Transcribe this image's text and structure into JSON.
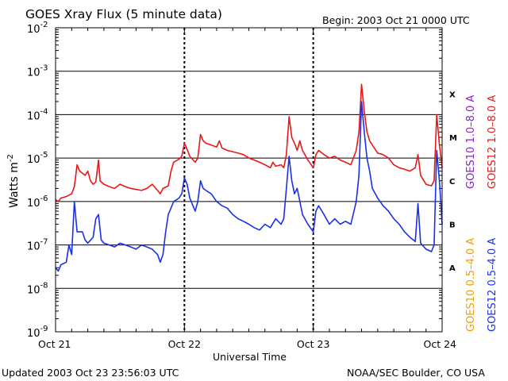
{
  "header": {
    "title": "GOES Xray Flux (5 minute data)",
    "begin": "Begin:  2003 Oct 21 0000 UTC"
  },
  "footer": {
    "updated": "Updated 2003 Oct 23 23:56:03 UTC",
    "credit": "NOAA/SEC Boulder, CO USA"
  },
  "chart_data": {
    "type": "line",
    "title": "GOES Xray Flux (5 minute data)",
    "xlabel": "Universal Time",
    "ylabel": "Watts m",
    "ylabel_superscript": "-2",
    "yscale": "log",
    "ylim": [
      1e-09,
      0.01
    ],
    "xlim": [
      0,
      72
    ],
    "x_unit": "hours since 2003 Oct 21 0000 UTC",
    "y_ticks": [
      {
        "exp": "-9",
        "base": "10"
      },
      {
        "exp": "-8",
        "base": "10"
      },
      {
        "exp": "-7",
        "base": "10"
      },
      {
        "exp": "-6",
        "base": "10"
      },
      {
        "exp": "-5",
        "base": "10"
      },
      {
        "exp": "-4",
        "base": "10"
      },
      {
        "exp": "-3",
        "base": "10"
      },
      {
        "exp": "-2",
        "base": "10"
      }
    ],
    "x_ticks": [
      {
        "x": 0,
        "label": "Oct 21"
      },
      {
        "x": 24,
        "label": "Oct 22"
      },
      {
        "x": 48,
        "label": "Oct 23"
      },
      {
        "x": 72,
        "label": "Oct 24"
      }
    ],
    "flare_classes": [
      {
        "label": "A",
        "y": 3e-08
      },
      {
        "label": "B",
        "y": 3e-07
      },
      {
        "label": "C",
        "y": 3e-06
      },
      {
        "label": "M",
        "y": 3e-05
      },
      {
        "label": "X",
        "y": 0.0003
      }
    ],
    "grid": "horizontal decade lines; dashed vertical lines at day boundaries",
    "legend_placement": "right, rotated",
    "legend": [
      {
        "text": "GOES10 1.0–8.0 A",
        "color": "#8b20c8"
      },
      {
        "text": "GOES12 1.0–8.0 A",
        "color": "#e81818"
      },
      {
        "text": "GOES10 0.5–4.0 A",
        "color": "#f0a000"
      },
      {
        "text": "GOES12 0.5–4.0 A",
        "color": "#1a30e8"
      }
    ],
    "series": [
      {
        "name": "GOES12 1.0–8.0 A",
        "color": "#e81818",
        "points": [
          [
            0,
            1.1e-06
          ],
          [
            0.5,
            1e-06
          ],
          [
            1,
            1.2e-06
          ],
          [
            2,
            1.3e-06
          ],
          [
            3,
            1.5e-06
          ],
          [
            3.5,
            2.2e-06
          ],
          [
            4,
            7e-06
          ],
          [
            4.5,
            5e-06
          ],
          [
            5,
            4.5e-06
          ],
          [
            5.5,
            4e-06
          ],
          [
            6,
            5e-06
          ],
          [
            6.5,
            3e-06
          ],
          [
            7,
            2.5e-06
          ],
          [
            7.5,
            2.8e-06
          ],
          [
            8,
            9e-06
          ],
          [
            8.3,
            3e-06
          ],
          [
            9,
            2.5e-06
          ],
          [
            10,
            2.2e-06
          ],
          [
            11,
            2e-06
          ],
          [
            12,
            2.5e-06
          ],
          [
            13,
            2.2e-06
          ],
          [
            14,
            2e-06
          ],
          [
            15,
            1.9e-06
          ],
          [
            16,
            1.8e-06
          ],
          [
            17,
            2e-06
          ],
          [
            18,
            2.5e-06
          ],
          [
            19,
            1.8e-06
          ],
          [
            19.5,
            1.5e-06
          ],
          [
            20,
            2e-06
          ],
          [
            21,
            2.3e-06
          ],
          [
            21.5,
            5e-06
          ],
          [
            22,
            8e-06
          ],
          [
            23,
            9.5e-06
          ],
          [
            23.5,
            1.1e-05
          ],
          [
            24,
            2.2e-05
          ],
          [
            24.5,
            1.6e-05
          ],
          [
            25,
            1.1e-05
          ],
          [
            26,
            8e-06
          ],
          [
            26.5,
            1e-05
          ],
          [
            27,
            3.5e-05
          ],
          [
            27.5,
            2.5e-05
          ],
          [
            28,
            2.2e-05
          ],
          [
            29,
            2e-05
          ],
          [
            30,
            1.8e-05
          ],
          [
            30.5,
            2.5e-05
          ],
          [
            31,
            1.7e-05
          ],
          [
            32,
            1.5e-05
          ],
          [
            33,
            1.4e-05
          ],
          [
            34,
            1.3e-05
          ],
          [
            35,
            1.2e-05
          ],
          [
            36,
            1e-05
          ],
          [
            37,
            9e-06
          ],
          [
            38,
            8e-06
          ],
          [
            39,
            7e-06
          ],
          [
            40,
            6e-06
          ],
          [
            40.5,
            8e-06
          ],
          [
            41,
            6.5e-06
          ],
          [
            42,
            7e-06
          ],
          [
            42.5,
            6e-06
          ],
          [
            43,
            1.2e-05
          ],
          [
            43.5,
            9e-05
          ],
          [
            44,
            3e-05
          ],
          [
            44.5,
            2.2e-05
          ],
          [
            45,
            1.5e-05
          ],
          [
            45.5,
            2.5e-05
          ],
          [
            46,
            1.5e-05
          ],
          [
            47,
            9e-06
          ],
          [
            48,
            6e-06
          ],
          [
            48.5,
            1.2e-05
          ],
          [
            49,
            1.5e-05
          ],
          [
            50,
            1.2e-05
          ],
          [
            51,
            1e-05
          ],
          [
            52,
            1.1e-05
          ],
          [
            53,
            9e-06
          ],
          [
            54,
            8e-06
          ],
          [
            55,
            7e-06
          ],
          [
            56,
            1.5e-05
          ],
          [
            56.5,
            4e-05
          ],
          [
            57,
            0.0005
          ],
          [
            57.5,
            0.00012
          ],
          [
            58,
            4e-05
          ],
          [
            58.5,
            2.5e-05
          ],
          [
            59,
            2e-05
          ],
          [
            60,
            1.3e-05
          ],
          [
            61,
            1.2e-05
          ],
          [
            62,
            1e-05
          ],
          [
            63,
            7e-06
          ],
          [
            64,
            6e-06
          ],
          [
            65,
            5.5e-06
          ],
          [
            66,
            5e-06
          ],
          [
            67,
            6e-06
          ],
          [
            67.5,
            1.2e-05
          ],
          [
            68,
            4e-06
          ],
          [
            69,
            2.5e-06
          ],
          [
            70,
            2.3e-06
          ],
          [
            70.5,
            3e-06
          ],
          [
            71,
            0.0001
          ],
          [
            71.5,
            2e-05
          ],
          [
            72,
            6e-06
          ]
        ]
      },
      {
        "name": "GOES12 0.5–4.0 A",
        "color": "#1a30e8",
        "points": [
          [
            0,
            3e-08
          ],
          [
            0.5,
            2.5e-08
          ],
          [
            1,
            3.5e-08
          ],
          [
            2,
            4e-08
          ],
          [
            2.5,
            1e-07
          ],
          [
            3,
            6e-08
          ],
          [
            3.5,
            1e-06
          ],
          [
            4,
            2e-07
          ],
          [
            5,
            2e-07
          ],
          [
            5.5,
            1.3e-07
          ],
          [
            6,
            1.1e-07
          ],
          [
            7,
            1.5e-07
          ],
          [
            7.5,
            4e-07
          ],
          [
            8,
            5e-07
          ],
          [
            8.5,
            1.3e-07
          ],
          [
            9,
            1.1e-07
          ],
          [
            10,
            1e-07
          ],
          [
            11,
            9e-08
          ],
          [
            12,
            1.1e-07
          ],
          [
            13,
            1e-07
          ],
          [
            14,
            9e-08
          ],
          [
            15,
            8e-08
          ],
          [
            16,
            1e-07
          ],
          [
            17,
            9e-08
          ],
          [
            18,
            8e-08
          ],
          [
            19,
            6e-08
          ],
          [
            19.5,
            4e-08
          ],
          [
            20,
            6e-08
          ],
          [
            20.5,
            2e-07
          ],
          [
            21,
            5e-07
          ],
          [
            22,
            1e-06
          ],
          [
            23,
            1.2e-06
          ],
          [
            23.5,
            1.5e-06
          ],
          [
            24,
            3.5e-06
          ],
          [
            24.5,
            2.5e-06
          ],
          [
            25,
            1.2e-06
          ],
          [
            26,
            6e-07
          ],
          [
            26.5,
            1e-06
          ],
          [
            27,
            3e-06
          ],
          [
            27.5,
            2e-06
          ],
          [
            28,
            1.8e-06
          ],
          [
            29,
            1.5e-06
          ],
          [
            30,
            1e-06
          ],
          [
            31,
            8e-07
          ],
          [
            32,
            7e-07
          ],
          [
            33,
            5e-07
          ],
          [
            34,
            4e-07
          ],
          [
            35,
            3.5e-07
          ],
          [
            36,
            3e-07
          ],
          [
            37,
            2.5e-07
          ],
          [
            38,
            2.2e-07
          ],
          [
            39,
            3e-07
          ],
          [
            40,
            2.5e-07
          ],
          [
            41,
            4e-07
          ],
          [
            42,
            3e-07
          ],
          [
            42.5,
            4e-07
          ],
          [
            43,
            2e-06
          ],
          [
            43.5,
            1.1e-05
          ],
          [
            44,
            3e-06
          ],
          [
            44.5,
            1.5e-06
          ],
          [
            45,
            2e-06
          ],
          [
            45.5,
            1e-06
          ],
          [
            46,
            5e-07
          ],
          [
            47,
            3e-07
          ],
          [
            48,
            2e-07
          ],
          [
            48.5,
            6e-07
          ],
          [
            49,
            8e-07
          ],
          [
            50,
            5e-07
          ],
          [
            51,
            3e-07
          ],
          [
            52,
            4e-07
          ],
          [
            53,
            3e-07
          ],
          [
            54,
            3.5e-07
          ],
          [
            55,
            3e-07
          ],
          [
            56,
            1e-06
          ],
          [
            56.5,
            4e-06
          ],
          [
            57,
            0.0002
          ],
          [
            57.5,
            4e-05
          ],
          [
            58,
            1e-05
          ],
          [
            58.5,
            5e-06
          ],
          [
            59,
            2e-06
          ],
          [
            60,
            1.2e-06
          ],
          [
            61,
            8e-07
          ],
          [
            62,
            6e-07
          ],
          [
            63,
            4e-07
          ],
          [
            64,
            3e-07
          ],
          [
            65,
            2e-07
          ],
          [
            66,
            1.5e-07
          ],
          [
            67,
            1.2e-07
          ],
          [
            67.5,
            9e-07
          ],
          [
            68,
            1.1e-07
          ],
          [
            69,
            8e-08
          ],
          [
            70,
            7e-08
          ],
          [
            70.5,
            1e-07
          ],
          [
            71,
            1.5e-05
          ],
          [
            71.5,
            3e-06
          ],
          [
            72,
            3e-07
          ]
        ]
      }
    ]
  }
}
